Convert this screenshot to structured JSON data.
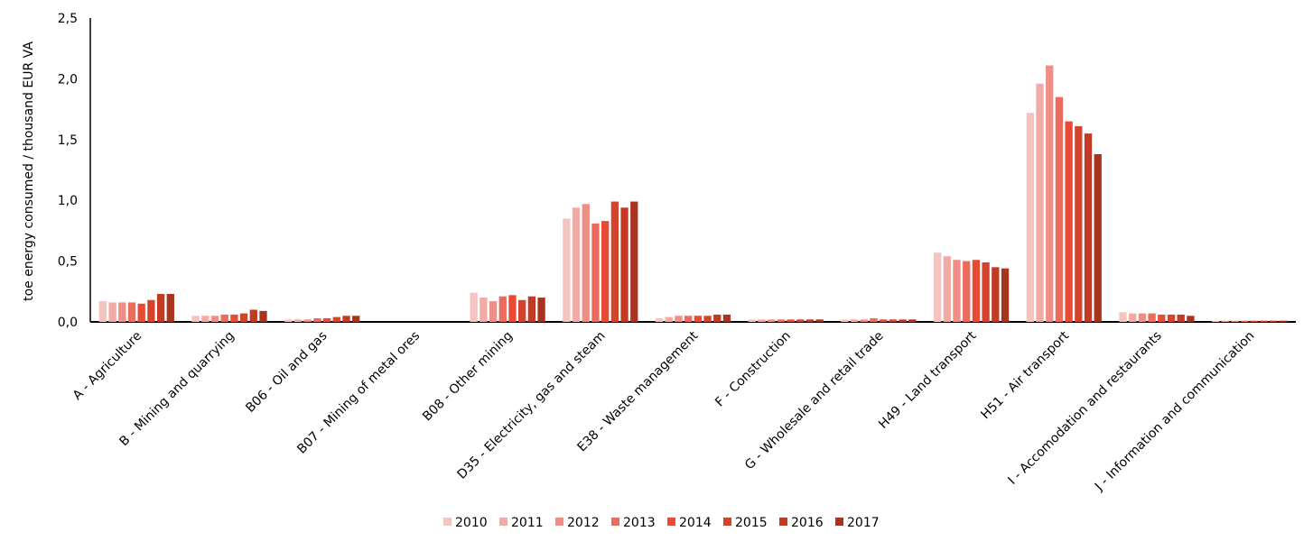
{
  "chart_data": {
    "type": "bar",
    "title": "",
    "xlabel": "",
    "ylabel": "toe energy consumed / thousand EUR VA",
    "ylim": [
      0,
      2.5
    ],
    "yticks": [
      "0,0",
      "0,5",
      "1,0",
      "1,5",
      "2,0",
      "2,5"
    ],
    "grid": false,
    "legend_position": "bottom",
    "categories": [
      "A - Agriculture",
      "B - Mining and quarrying",
      "B06 - Oil and gas",
      "B07 - Mining of metal ores",
      "B08 - Other mining",
      "D35 - Electricity, gas and steam",
      "E38 - Waste management",
      "F - Construction",
      "G - Wholesale and retail trade",
      "H49 - Land transport",
      "H51 - Air transport",
      "I - Accomodation and restaurants",
      "J - Information and communication"
    ],
    "series": [
      {
        "name": "2010",
        "color": "#f4c4c0",
        "values": [
          0.17,
          0.05,
          0.02,
          0,
          0.24,
          0.85,
          0.03,
          0.02,
          0.02,
          0.57,
          1.72,
          0.08,
          0.01
        ]
      },
      {
        "name": "2011",
        "color": "#f2aaa5",
        "values": [
          0.16,
          0.05,
          0.02,
          0,
          0.2,
          0.94,
          0.04,
          0.02,
          0.02,
          0.54,
          1.96,
          0.07,
          0.01
        ]
      },
      {
        "name": "2012",
        "color": "#ef8e85",
        "values": [
          0.16,
          0.05,
          0.02,
          0,
          0.17,
          0.97,
          0.05,
          0.02,
          0.02,
          0.51,
          2.11,
          0.07,
          0.01
        ]
      },
      {
        "name": "2013",
        "color": "#ec6b5c",
        "values": [
          0.16,
          0.06,
          0.03,
          0,
          0.21,
          0.81,
          0.05,
          0.02,
          0.03,
          0.5,
          1.85,
          0.07,
          0.01
        ]
      },
      {
        "name": "2014",
        "color": "#e84a33",
        "values": [
          0.15,
          0.06,
          0.03,
          0,
          0.22,
          0.83,
          0.05,
          0.02,
          0.02,
          0.51,
          1.65,
          0.06,
          0.01
        ]
      },
      {
        "name": "2015",
        "color": "#d4442c",
        "values": [
          0.18,
          0.07,
          0.04,
          0,
          0.18,
          0.99,
          0.05,
          0.02,
          0.02,
          0.49,
          1.61,
          0.06,
          0.01
        ]
      },
      {
        "name": "2016",
        "color": "#c23a24",
        "values": [
          0.23,
          0.1,
          0.05,
          0,
          0.21,
          0.94,
          0.06,
          0.02,
          0.02,
          0.45,
          1.55,
          0.06,
          0.01
        ]
      },
      {
        "name": "2017",
        "color": "#a8341f",
        "values": [
          0.23,
          0.09,
          0.05,
          0,
          0.2,
          0.99,
          0.06,
          0.02,
          0.02,
          0.44,
          1.38,
          0.05,
          0.01
        ]
      }
    ]
  }
}
